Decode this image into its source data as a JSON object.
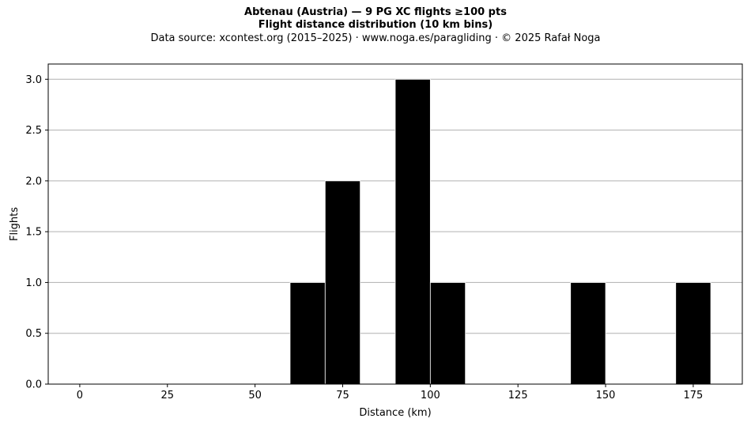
{
  "chart_data": {
    "type": "bar",
    "title": "Abtenau (Austria)  —  9 PG XC flights ≥100 pts",
    "subtitle": "Flight distance distribution (10 km bins)",
    "source": "Data source: xcontest.org (2015–2025)  ·  www.noga.es/paragliding  ·  © 2025 Rafał Noga",
    "xlabel": "Distance (km)",
    "ylabel": "Flights",
    "bins": [
      {
        "x0": 60,
        "x1": 70,
        "count": 1
      },
      {
        "x0": 70,
        "x1": 80,
        "count": 2
      },
      {
        "x0": 90,
        "x1": 100,
        "count": 3
      },
      {
        "x0": 100,
        "x1": 110,
        "count": 1
      },
      {
        "x0": 140,
        "x1": 150,
        "count": 1
      },
      {
        "x0": 170,
        "x1": 180,
        "count": 1
      }
    ],
    "xlim": [
      -9,
      189
    ],
    "ylim": [
      0,
      3.15
    ],
    "xticks": [
      0,
      25,
      50,
      75,
      100,
      125,
      150,
      175
    ],
    "yticks": [
      0,
      0.5,
      1,
      1.5,
      2,
      2.5,
      3
    ],
    "ytick_labels": [
      "0.0",
      "0.5",
      "1.0",
      "1.5",
      "2.0",
      "2.5",
      "3.0"
    ],
    "grid": "horizontal",
    "bar_color": "#000000",
    "edge_color": "#ffffff",
    "grid_color": "#b0b0b0"
  }
}
